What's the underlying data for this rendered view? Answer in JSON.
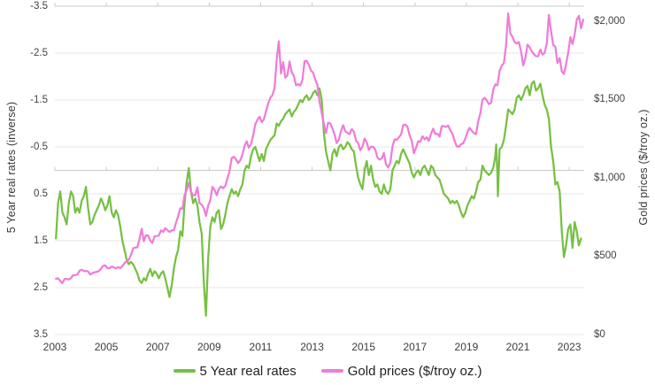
{
  "chart_data": {
    "type": "line",
    "title": "",
    "grid": "horizontal-only",
    "legend_position": "bottom-center",
    "colors": {
      "rates_line": "#76c043",
      "gold_line": "#f07cd8",
      "gridline": "#e7e7e7",
      "axis_line": "#c9c9c9",
      "tick_text": "#424242"
    },
    "x_axis": {
      "min": 2003,
      "max": 2023.58,
      "ticks": [
        {
          "label": "2003",
          "value": 2003
        },
        {
          "label": "2005",
          "value": 2005
        },
        {
          "label": "2007",
          "value": 2007
        },
        {
          "label": "2009",
          "value": 2009
        },
        {
          "label": "2011",
          "value": 2011
        },
        {
          "label": "2013",
          "value": 2013
        },
        {
          "label": "2015",
          "value": 2015
        },
        {
          "label": "2017",
          "value": 2017
        },
        {
          "label": "2019",
          "value": 2019
        },
        {
          "label": "2021",
          "value": 2021
        },
        {
          "label": "2023",
          "value": 2023
        }
      ]
    },
    "left_axis": {
      "title": "5 Year real rates (inverse)",
      "inverted": true,
      "min": -3.5,
      "max": 3.5,
      "ticks": [
        {
          "label": "-3.5",
          "value": -3.5
        },
        {
          "label": "-2.5",
          "value": -2.5
        },
        {
          "label": "-1.5",
          "value": -1.5
        },
        {
          "label": "-0.5",
          "value": -0.5
        },
        {
          "label": "0.5",
          "value": 0.5
        },
        {
          "label": "1.5",
          "value": 1.5
        },
        {
          "label": "2.5",
          "value": 2.5
        },
        {
          "label": "3.5",
          "value": 3.5
        }
      ]
    },
    "right_axis": {
      "title": "Gold prices ($/troy oz.)",
      "min": 0,
      "max": 2096,
      "ticks": [
        {
          "label": "$0",
          "value": 0
        },
        {
          "label": "$500",
          "value": 500
        },
        {
          "label": "$1,000",
          "value": 1000
        },
        {
          "label": "$1,500",
          "value": 1500
        },
        {
          "label": "$2,000",
          "value": 2000
        }
      ]
    },
    "series": [
      {
        "name": "5 Year real rates",
        "axis": "left",
        "color": "#76c043",
        "monthly_start_year": 2003,
        "values": [
          1.45,
          0.7,
          0.45,
          0.9,
          1.0,
          1.15,
          0.7,
          0.45,
          0.55,
          0.9,
          0.8,
          0.9,
          0.65,
          0.55,
          0.35,
          0.8,
          1.15,
          1.1,
          0.95,
          0.85,
          0.75,
          0.6,
          0.7,
          0.85,
          0.75,
          0.55,
          0.9,
          1.0,
          0.85,
          0.95,
          1.2,
          1.5,
          1.7,
          1.9,
          2.0,
          1.95,
          2.0,
          2.1,
          2.2,
          2.35,
          2.4,
          2.3,
          2.35,
          2.2,
          2.1,
          2.25,
          2.15,
          2.2,
          2.3,
          2.2,
          2.15,
          2.3,
          2.5,
          2.7,
          2.45,
          2.1,
          1.85,
          1.7,
          1.3,
          1.4,
          0.7,
          0.25,
          -0.05,
          0.45,
          0.7,
          0.6,
          0.75,
          1.1,
          1.35,
          2.4,
          3.1,
          1.9,
          1.2,
          1.0,
          1.1,
          0.9,
          0.85,
          1.25,
          1.15,
          0.95,
          0.7,
          0.55,
          0.4,
          0.5,
          0.45,
          0.55,
          0.4,
          0.3,
          0.0,
          -0.1,
          -0.05,
          -0.3,
          -0.45,
          -0.5,
          -0.35,
          -0.2,
          -0.35,
          -0.2,
          -0.45,
          -0.55,
          -0.65,
          -0.7,
          -0.75,
          -1.0,
          -0.95,
          -1.05,
          -1.1,
          -1.2,
          -1.25,
          -1.3,
          -1.15,
          -1.25,
          -1.3,
          -1.4,
          -1.5,
          -1.45,
          -1.55,
          -1.6,
          -1.5,
          -1.55,
          -1.65,
          -1.7,
          -1.6,
          -1.75,
          -1.5,
          -0.8,
          -0.4,
          -0.2,
          0.0,
          -0.35,
          -0.45,
          -0.3,
          -0.5,
          -0.55,
          -0.45,
          -0.5,
          -0.6,
          -0.55,
          -0.45,
          -0.4,
          -0.1,
          0.15,
          0.3,
          0.4,
          0.0,
          -0.2,
          0.1,
          -0.1,
          0.2,
          0.35,
          0.3,
          0.45,
          0.5,
          0.3,
          0.45,
          0.5,
          0.4,
          0.0,
          -0.1,
          -0.2,
          -0.15,
          -0.35,
          -0.45,
          -0.35,
          -0.25,
          -0.15,
          0.05,
          0.15,
          0.05,
          0.0,
          0.1,
          -0.05,
          -0.1,
          0.0,
          0.1,
          -0.1,
          -0.05,
          0.1,
          0.15,
          0.2,
          0.35,
          0.5,
          0.55,
          0.6,
          0.7,
          0.65,
          0.7,
          0.65,
          0.75,
          0.9,
          1.0,
          0.9,
          0.75,
          0.65,
          0.55,
          0.6,
          0.45,
          0.25,
          0.2,
          -0.1,
          0.0,
          0.05,
          0.1,
          0.05,
          -0.05,
          -0.3,
          0.1,
          -0.45,
          -0.5,
          -0.65,
          -0.95,
          -1.3,
          -1.25,
          -1.2,
          -1.3,
          -1.55,
          -1.6,
          -1.5,
          -1.6,
          -1.75,
          -1.8,
          -1.6,
          -1.85,
          -1.9,
          -1.7,
          -1.75,
          -1.85,
          -1.6,
          -1.4,
          -1.3,
          -1.1,
          -0.5,
          -0.2,
          0.3,
          0.25,
          0.45,
          1.3,
          1.85,
          1.6,
          1.25,
          1.15,
          1.65,
          1.1,
          1.3,
          1.6,
          1.45
        ],
        "extra_points": [
          [
            2020.16,
            -0.55
          ],
          [
            2020.225,
            0.55
          ]
        ]
      },
      {
        "name": "Gold prices ($/troy oz.)",
        "axis": "right",
        "color": "#f07cd8",
        "monthly_start_year": 2003,
        "values": [
          356,
          359,
          341,
          328,
          355,
          356,
          351,
          360,
          379,
          379,
          383,
          407,
          414,
          405,
          406,
          403,
          383,
          392,
          398,
          400,
          405,
          420,
          439,
          442,
          424,
          423,
          434,
          429,
          422,
          431,
          424,
          437,
          456,
          470,
          477,
          510,
          550,
          555,
          557,
          611,
          675,
          596,
          634,
          632,
          599,
          585,
          627,
          629,
          631,
          665,
          655,
          679,
          667,
          655,
          665,
          665,
          713,
          755,
          806,
          803,
          890,
          922,
          968,
          910,
          889,
          889,
          940,
          839,
          829,
          807,
          757,
          822,
          858,
          943,
          924,
          890,
          928,
          946,
          934,
          949,
          996,
          1043,
          1127,
          1135,
          1118,
          1095,
          1113,
          1148,
          1205,
          1233,
          1193,
          1216,
          1271,
          1342,
          1370,
          1391,
          1356,
          1373,
          1424,
          1474,
          1511,
          1529,
          1573,
          1756,
          1872,
          1666,
          1739,
          1640,
          1655,
          1743,
          1674,
          1650,
          1591,
          1598,
          1590,
          1626,
          1745,
          1747,
          1721,
          1685,
          1671,
          1627,
          1593,
          1487,
          1414,
          1343,
          1286,
          1352,
          1348,
          1316,
          1276,
          1222,
          1244,
          1300,
          1336,
          1298,
          1288,
          1279,
          1311,
          1296,
          1238,
          1222,
          1176,
          1199,
          1251,
          1227,
          1178,
          1198,
          1199,
          1181,
          1130,
          1117,
          1125,
          1159,
          1086,
          1068,
          1097,
          1200,
          1246,
          1242,
          1260,
          1276,
          1337,
          1340,
          1327,
          1272,
          1238,
          1157,
          1192,
          1234,
          1231,
          1266,
          1246,
          1260,
          1236,
          1283,
          1314,
          1280,
          1282,
          1264,
          1331,
          1330,
          1325,
          1334,
          1303,
          1281,
          1238,
          1201,
          1198,
          1215,
          1221,
          1250,
          1292,
          1320,
          1301,
          1286,
          1279,
          1359,
          1413,
          1500,
          1511,
          1495,
          1471,
          1479,
          1561,
          1597,
          1591,
          1683,
          1716,
          1732,
          1843,
          2050,
          1922,
          1900,
          1866,
          1858,
          1867,
          1808,
          1718,
          1762,
          1850,
          1835,
          1807,
          1790,
          1776,
          1777,
          1820,
          1787,
          1797,
          1856,
          2040,
          1937,
          1848,
          1837,
          1733,
          1765,
          1681,
          1664,
          1725,
          1797,
          1898,
          1854,
          1913,
          2010,
          2035,
          1955,
          2010
        ],
        "extra_points": []
      }
    ],
    "legend": [
      {
        "label": "5 Year real rates",
        "color": "#76c043"
      },
      {
        "label": "Gold prices ($/troy oz.)",
        "color": "#f07cd8"
      }
    ]
  }
}
